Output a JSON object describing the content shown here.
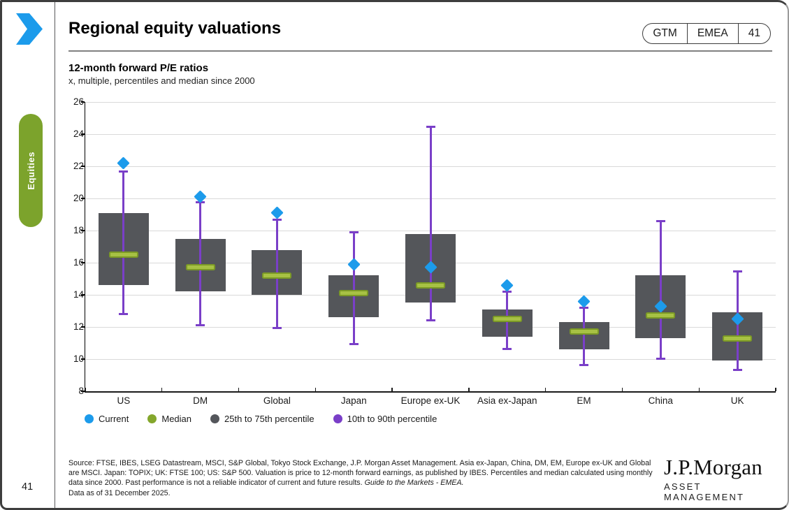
{
  "page": {
    "section_tab": "Equities",
    "page_number": "41"
  },
  "header": {
    "title": "Regional equity valuations",
    "badge": {
      "items": [
        "GTM",
        "EMEA",
        "41"
      ]
    }
  },
  "chart_header": {
    "title": "12-month forward P/E ratios",
    "subtitle": "x, multiple, percentiles and median since 2000"
  },
  "colors": {
    "current_blue": "#1C9BEB",
    "median_green_fill": "#A7C144",
    "median_green_border": "#7C9A26",
    "legend_green": "#84A72C",
    "box_gray": "#54565A",
    "whisker_purple": "#7A3FC8",
    "equities_pill_green": "#7CA32C",
    "chevron_blue": "#1C9BEB"
  },
  "chart_data": {
    "type": "boxplot",
    "title": "12-month forward P/E ratios",
    "subtitle": "x, multiple, percentiles and median since 2000",
    "ylim": [
      8,
      26
    ],
    "ytick_step": 2,
    "grid": true,
    "legend_position": "bottom",
    "categories": [
      "US",
      "DM",
      "Global",
      "Japan",
      "Europe ex-UK",
      "Asia ex-Japan",
      "EM",
      "China",
      "UK"
    ],
    "series": [
      {
        "name": "Current",
        "values": [
          22.2,
          20.1,
          19.1,
          15.9,
          15.7,
          14.6,
          13.6,
          13.3,
          12.5
        ]
      },
      {
        "name": "90th percentile",
        "values": [
          21.7,
          19.8,
          18.7,
          17.9,
          24.5,
          14.2,
          13.2,
          18.6,
          15.5
        ]
      },
      {
        "name": "75th percentile",
        "values": [
          19.1,
          17.5,
          16.8,
          15.2,
          17.8,
          13.1,
          12.3,
          15.2,
          12.9
        ]
      },
      {
        "name": "Median",
        "values": [
          16.5,
          15.7,
          15.2,
          14.1,
          14.6,
          12.5,
          11.7,
          12.7,
          11.3
        ]
      },
      {
        "name": "25th percentile",
        "values": [
          14.6,
          14.2,
          14.0,
          12.6,
          13.5,
          11.4,
          10.6,
          11.3,
          9.9
        ]
      },
      {
        "name": "10th percentile",
        "values": [
          12.8,
          12.1,
          11.9,
          10.9,
          12.4,
          10.6,
          9.6,
          10.0,
          9.3
        ]
      }
    ],
    "legend": [
      {
        "label": "Current",
        "color": "#1C9BEB"
      },
      {
        "label": "Median",
        "color": "#84A72C"
      },
      {
        "label": "25th to 75th percentile",
        "color": "#54565B"
      },
      {
        "label": "10th to 90th percentile",
        "color": "#7A3FC8"
      }
    ]
  },
  "footer": {
    "source_text": "Source: FTSE, IBES, LSEG Datastream, MSCI, S&P Global, Tokyo Stock Exchange, J.P. Morgan Asset Management. Asia ex-Japan, China, DM, EM, Europe ex-UK and Global are MSCI. Japan: TOPIX; UK: FTSE 100; US: S&P 500. Valuation is price to 12-month forward earnings, as published by IBES. Percentiles and median calculated using monthly data since 2000. Past performance is not a reliable indicator of current and future results. ",
    "source_italic": "Guide to the Markets - EMEA.",
    "data_as_of": "Data as of 31 December 2025.",
    "logo_line1": "J.P.Morgan",
    "logo_line2": "ASSET MANAGEMENT"
  }
}
